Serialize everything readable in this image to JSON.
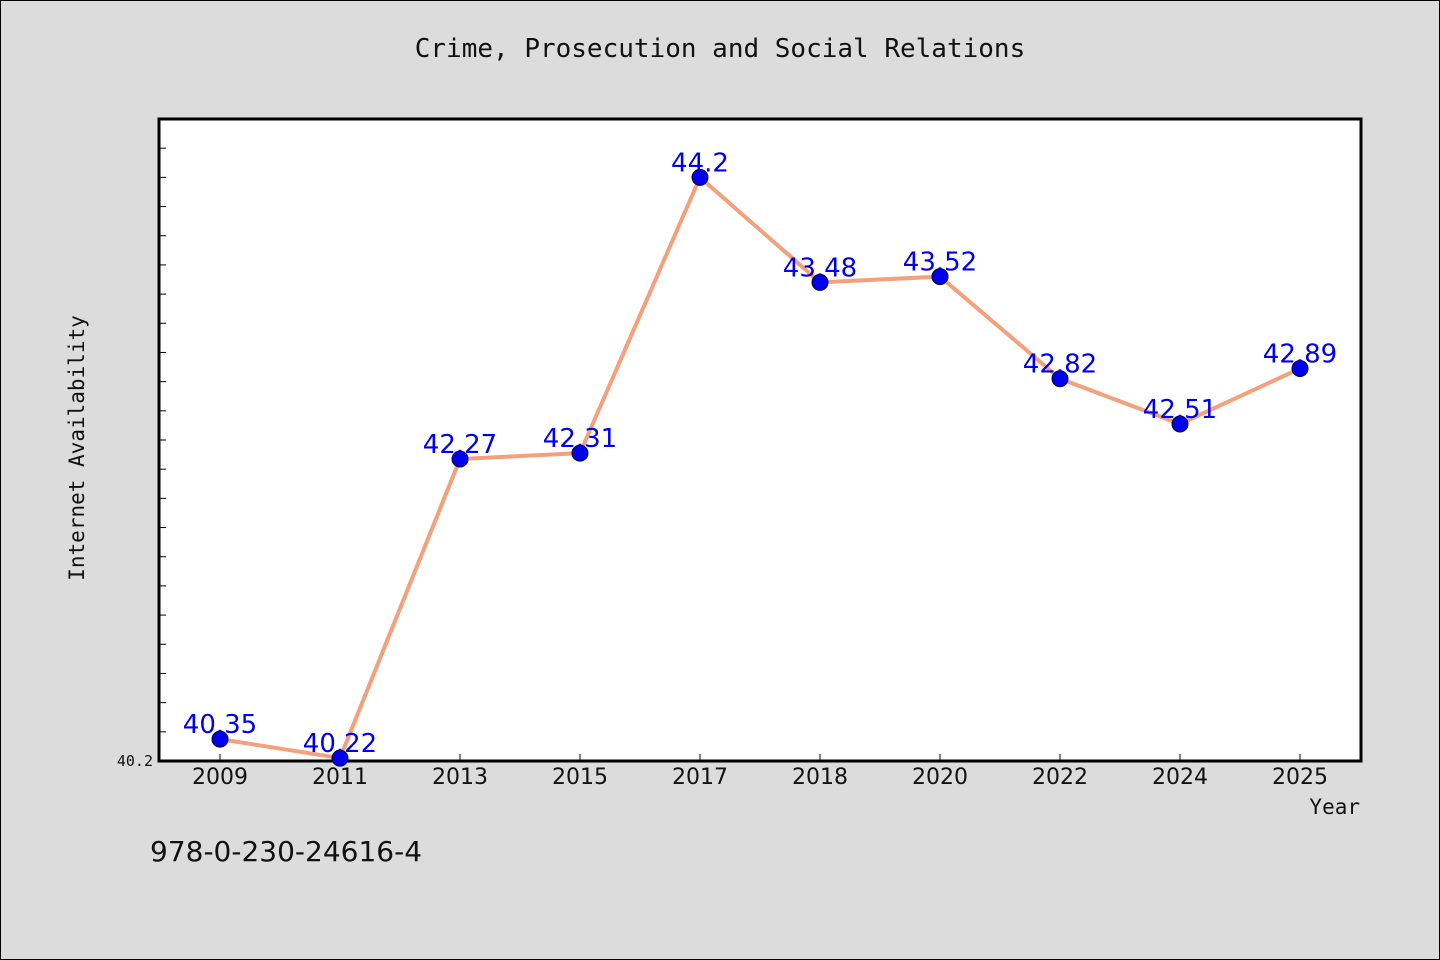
{
  "chart_data": {
    "type": "line",
    "title": "Crime, Prosecution and Social Relations",
    "xlabel": "Year",
    "ylabel": "Internet Availability",
    "categories": [
      "2009",
      "2011",
      "2013",
      "2015",
      "2017",
      "2018",
      "2020",
      "2022",
      "2024",
      "2025"
    ],
    "series": [
      {
        "values": [
          40.35,
          40.22,
          42.27,
          42.31,
          44.2,
          43.48,
          43.52,
          42.82,
          42.51,
          42.89
        ],
        "labels": [
          "40.35",
          "40.22",
          "42.27",
          "42.31",
          "44.2",
          "43.48",
          "43.52",
          "42.82",
          "42.51",
          "42.89"
        ],
        "line_color": "#f4a07c",
        "marker_color": "#0000ee"
      }
    ],
    "ylim": [
      40.2,
      44.6
    ],
    "y_tick_labels": [
      "40.2"
    ],
    "grid": false,
    "legend": "none"
  },
  "footnote": "978-0-230-24616-4",
  "colors": {
    "background": "#dcdcdc",
    "plot_background": "#ffffff",
    "label_color": "#0000ee"
  }
}
